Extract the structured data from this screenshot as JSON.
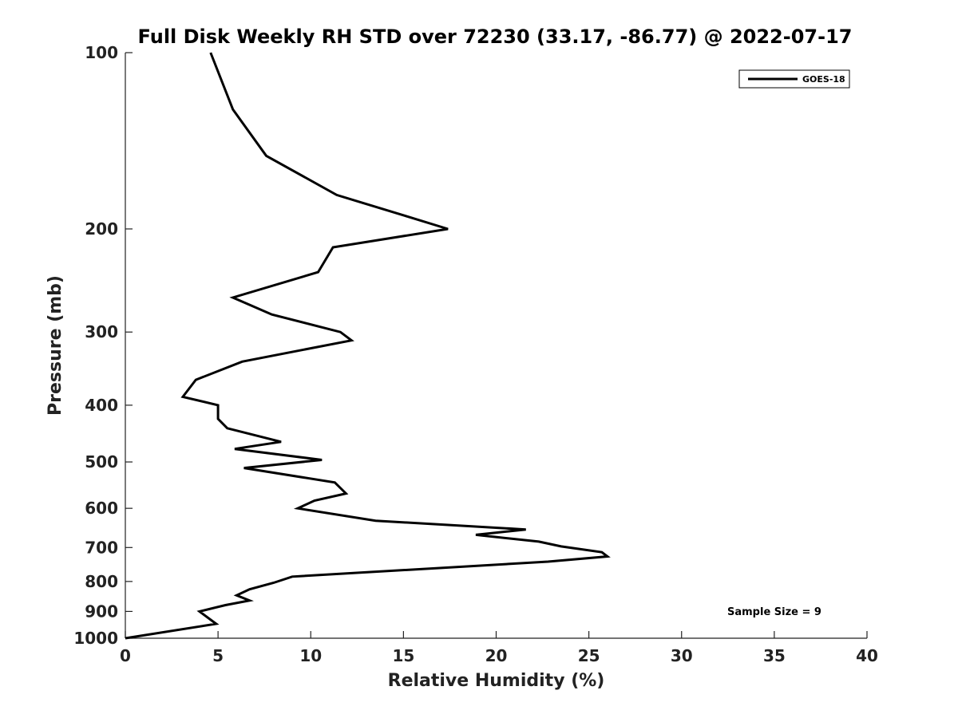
{
  "chart_data": {
    "type": "line",
    "title": "Full Disk Weekly RH STD over 72230 (33.17, -86.77) @ 2022-07-17",
    "xlabel": "Relative Humidity (%)",
    "ylabel": "Pressure (mb)",
    "xlim": [
      0,
      40
    ],
    "ylim": [
      1000,
      100
    ],
    "y_scale": "log",
    "x_ticks": [
      0,
      5,
      10,
      15,
      20,
      25,
      30,
      35,
      40
    ],
    "y_ticks": [
      100,
      200,
      300,
      400,
      500,
      600,
      700,
      800,
      900,
      1000
    ],
    "grid": false,
    "legend_position": "top-right",
    "annotation": "Sample Size = 9",
    "series": [
      {
        "name": "GOES-18",
        "color": "#000000",
        "x": [
          4.6,
          5.8,
          7.6,
          11.4,
          15.1,
          17.4,
          11.2,
          10.4,
          5.8,
          7.9,
          11.6,
          12.2,
          6.3,
          3.8,
          3.1,
          5.0,
          5.0,
          5.5,
          8.4,
          5.9,
          10.6,
          6.4,
          11.3,
          11.9,
          10.2,
          9.3,
          13.5,
          21.6,
          18.9,
          22.3,
          23.5,
          25.7,
          26.0,
          22.8,
          9.0,
          8.0,
          6.7,
          6.0,
          6.7,
          5.4,
          4.0,
          4.9,
          0.0
        ],
        "y": [
          100,
          125,
          150,
          175,
          190,
          200,
          215,
          237,
          262,
          280,
          300,
          310,
          337,
          362,
          387,
          400,
          422,
          438,
          462,
          475,
          496,
          512,
          542,
          566,
          582,
          600,
          630,
          652,
          666,
          684,
          697,
          713,
          725,
          740,
          785,
          804,
          825,
          845,
          862,
          878,
          900,
          945,
          1000
        ]
      }
    ]
  }
}
